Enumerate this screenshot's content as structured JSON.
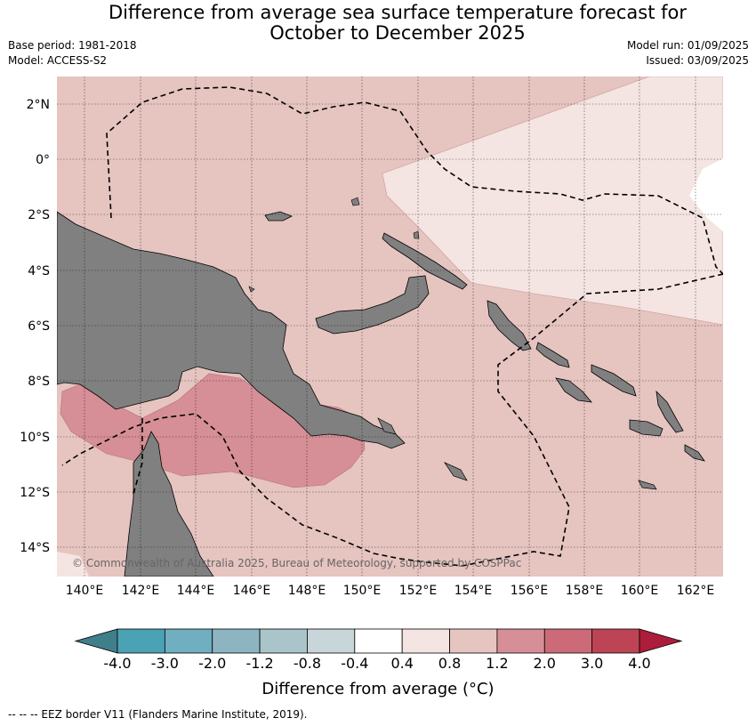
{
  "title_line1": "Difference from average sea surface temperature forecast for",
  "title_line2": "October to December 2025",
  "base_period": "Base period: 1981-2018",
  "model": "Model: ACCESS-S2",
  "model_run": "Model run: 01/09/2025",
  "issued": "Issued: 03/09/2025",
  "latitude_labels": [
    "2°N",
    "0°",
    "2°S",
    "4°S",
    "6°S",
    "8°S",
    "10°S",
    "12°S",
    "14°S"
  ],
  "longitude_labels": [
    "140°E",
    "142°E",
    "144°E",
    "146°E",
    "148°E",
    "150°E",
    "152°E",
    "154°E",
    "156°E",
    "158°E",
    "160°E",
    "162°E"
  ],
  "copyright": "© Commonwealth of Australia 2025, Bureau of Meteorology, supported by COSPPac",
  "colorbar": {
    "ticks": [
      "-4.0",
      "-3.0",
      "-2.0",
      "-1.2",
      "-0.8",
      "-0.4",
      "0.4",
      "0.8",
      "1.2",
      "2.0",
      "3.0",
      "4.0"
    ],
    "colors": [
      "#3f7f8c",
      "#4aa2b4",
      "#6fafbf",
      "#8db5c1",
      "#a9c5ca",
      "#c8d6d9",
      "#ffffff",
      "#f4e4e2",
      "#e6c4c0",
      "#d68f96",
      "#cc6b77",
      "#bc4454",
      "#ab1d3b"
    ],
    "label": "Difference from average (°C)"
  },
  "footnote": "--  --  -- EEZ border V11 (Flanders Marine Institute, 2019).",
  "colors": {
    "land": "#808080",
    "anomaly_0_4_to_0_8": "#f4e4e2",
    "anomaly_0_8_to_1_2": "#e6c4c0",
    "anomaly_1_2_to_2_0": "#d68f96"
  }
}
